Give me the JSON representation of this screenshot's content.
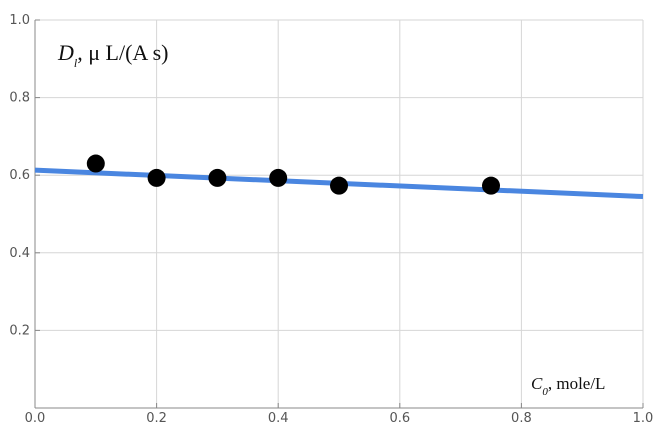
{
  "chart_data": {
    "type": "scatter",
    "title": "",
    "ylabel": {
      "symbol": "D",
      "subscript": "l",
      "unit": ",  μ L/(A s)"
    },
    "xlabel": {
      "symbol": "C",
      "subscript": "0",
      "unit": ", mole/L"
    },
    "xlim": [
      0.0,
      1.0
    ],
    "ylim": [
      0.0,
      1.0
    ],
    "x_ticks": [
      "0.0",
      "0.2",
      "0.4",
      "0.6",
      "0.8",
      "1.0"
    ],
    "y_ticks": [
      "0.2",
      "0.4",
      "0.6",
      "0.8",
      "1.0"
    ],
    "grid": true,
    "series": [
      {
        "kind": "points",
        "color": "#000000",
        "x": [
          0.1,
          0.2,
          0.3,
          0.4,
          0.5,
          0.75
        ],
        "y": [
          0.63,
          0.593,
          0.593,
          0.593,
          0.573,
          0.573
        ]
      },
      {
        "kind": "line",
        "color": "#4a86e0",
        "x": [
          0.0,
          1.0
        ],
        "y": [
          0.613,
          0.545
        ]
      }
    ]
  }
}
